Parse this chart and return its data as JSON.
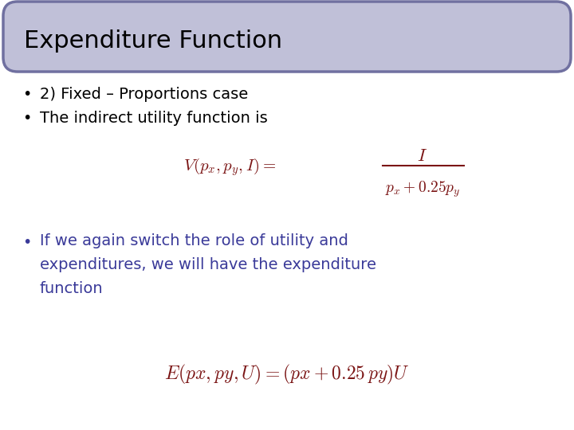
{
  "title": "Expenditure Function",
  "title_bg_color": "#c0c0d8",
  "title_border_color": "#7070a0",
  "title_text_color": "#000000",
  "bg_color": "#ffffff",
  "bullet1": "2) Fixed – Proportions case",
  "bullet2": "The indirect utility function is",
  "formula_color": "#7B1515",
  "bullet3_color": "#3a3a99",
  "bullet3_lines": [
    "If we again switch the role of utility and",
    "expenditures, we will have the expenditure",
    "function"
  ],
  "formula2_color": "#7B1515",
  "bullet_color": "#000000",
  "figw": 7.2,
  "figh": 5.4,
  "dpi": 100
}
